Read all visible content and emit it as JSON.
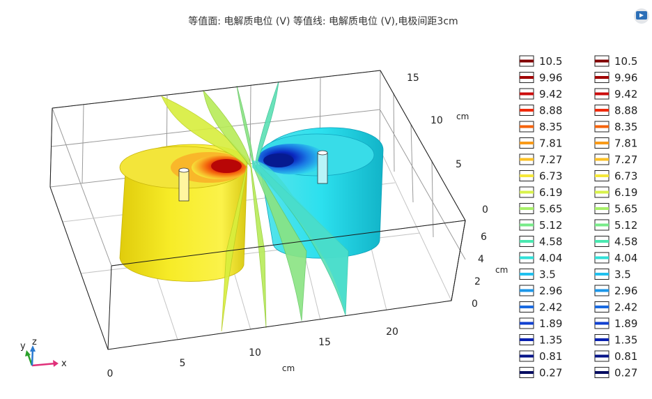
{
  "title": "等值面: 电解质电位 (V) 等值线: 电解质电位 (V),电极间距3cm",
  "chart_data": {
    "type": "3d-isosurface",
    "title": "等值面: 电解质电位 (V) 等值线: 电解质电位 (V),电极间距3cm",
    "x_axis": {
      "label": "cm",
      "ticks": [
        "0",
        "5",
        "10",
        "15",
        "20"
      ]
    },
    "y_axis": {
      "label": "cm",
      "ticks": [
        "0",
        "5",
        "10",
        "15"
      ]
    },
    "z_axis": {
      "label": "cm",
      "ticks": [
        "0",
        "2",
        "4",
        "6"
      ]
    },
    "colorbars": [
      {
        "values": [
          "10.5",
          "9.96",
          "9.42",
          "8.88",
          "8.35",
          "7.81",
          "7.27",
          "6.73",
          "6.19",
          "5.65",
          "5.12",
          "4.58",
          "4.04",
          "3.5",
          "2.96",
          "2.42",
          "1.89",
          "1.35",
          "0.81",
          "0.27"
        ]
      },
      {
        "values": [
          "10.5",
          "9.96",
          "9.42",
          "8.88",
          "8.35",
          "7.81",
          "7.27",
          "6.73",
          "6.19",
          "5.65",
          "5.12",
          "4.58",
          "4.04",
          "3.5",
          "2.96",
          "2.42",
          "1.89",
          "1.35",
          "0.81",
          "0.27"
        ]
      }
    ],
    "colors": [
      "#800000",
      "#a00000",
      "#cc0c0c",
      "#ef2a0c",
      "#f5620a",
      "#f89a18",
      "#fbc024",
      "#f5e83a",
      "#d8f24a",
      "#a8f06a",
      "#78ea88",
      "#4ae8b0",
      "#30e0d8",
      "#20c0ee",
      "#1c96e8",
      "#1a6ae0",
      "#1040d0",
      "#0820b0",
      "#061488",
      "#040c60"
    ],
    "triad": {
      "x": "x",
      "y": "y",
      "z": "z"
    },
    "grid": true
  }
}
